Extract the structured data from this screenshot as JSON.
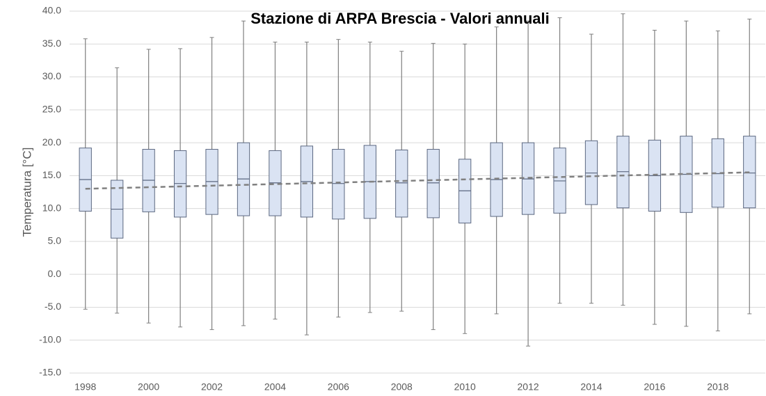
{
  "chart_data": {
    "type": "box",
    "title": "Stazione di ARPA Brescia - Valori annuali",
    "y_label": "Temperatura [°C]",
    "categories": [
      "1998",
      null,
      "2000",
      null,
      "2002",
      null,
      "2004",
      null,
      "2006",
      null,
      "2008",
      null,
      "2010",
      null,
      "2012",
      null,
      "2014",
      null,
      "2016",
      null,
      "2018",
      null
    ],
    "boxes": [
      {
        "high": 35.8,
        "q3": 19.2,
        "median": 14.4,
        "q1": 9.6,
        "low": -5.3
      },
      {
        "high": 31.4,
        "q3": 14.3,
        "median": 9.9,
        "q1": 5.5,
        "low": -5.9
      },
      {
        "high": 34.2,
        "q3": 19.0,
        "median": 14.3,
        "q1": 9.5,
        "low": -7.4
      },
      {
        "high": 34.3,
        "q3": 18.8,
        "median": 13.8,
        "q1": 8.7,
        "low": -8.0
      },
      {
        "high": 36.0,
        "q3": 19.0,
        "median": 14.1,
        "q1": 9.1,
        "low": -8.4
      },
      {
        "high": 38.5,
        "q3": 20.0,
        "median": 14.5,
        "q1": 8.9,
        "low": -7.8
      },
      {
        "high": 35.3,
        "q3": 18.8,
        "median": 13.9,
        "q1": 8.9,
        "low": -6.8
      },
      {
        "high": 35.3,
        "q3": 19.5,
        "median": 14.1,
        "q1": 8.7,
        "low": -9.2
      },
      {
        "high": 35.7,
        "q3": 19.0,
        "median": 13.8,
        "q1": 8.4,
        "low": -6.5
      },
      {
        "high": 35.3,
        "q3": 19.6,
        "median": 14.1,
        "q1": 8.5,
        "low": -5.8
      },
      {
        "high": 33.9,
        "q3": 18.9,
        "median": 13.9,
        "q1": 8.7,
        "low": -5.6
      },
      {
        "high": 35.1,
        "q3": 19.0,
        "median": 13.9,
        "q1": 8.6,
        "low": -8.4
      },
      {
        "high": 35.0,
        "q3": 17.5,
        "median": 12.7,
        "q1": 7.8,
        "low": -9.0
      },
      {
        "high": 37.6,
        "q3": 20.0,
        "median": 14.4,
        "q1": 8.8,
        "low": -6.0
      },
      {
        "high": 38.5,
        "q3": 20.0,
        "median": 14.5,
        "q1": 9.1,
        "low": -10.9
      },
      {
        "high": 39.0,
        "q3": 19.2,
        "median": 14.2,
        "q1": 9.3,
        "low": -4.4
      },
      {
        "high": 36.5,
        "q3": 20.3,
        "median": 15.4,
        "q1": 10.6,
        "low": -4.4
      },
      {
        "high": 39.6,
        "q3": 21.0,
        "median": 15.6,
        "q1": 10.1,
        "low": -4.7
      },
      {
        "high": 37.1,
        "q3": 20.4,
        "median": 15.0,
        "q1": 9.6,
        "low": -7.6
      },
      {
        "high": 38.5,
        "q3": 21.0,
        "median": 15.2,
        "q1": 9.4,
        "low": -7.9
      },
      {
        "high": 37.0,
        "q3": 20.6,
        "median": 15.3,
        "q1": 10.2,
        "low": -8.6
      },
      {
        "high": 38.8,
        "q3": 21.0,
        "median": 15.4,
        "q1": 10.1,
        "low": -6.0
      }
    ],
    "trendline": {
      "start": 13.0,
      "end": 15.5
    },
    "ylim": [
      -15,
      40
    ],
    "yticks": [
      {
        "value": -15,
        "label": "-15.0"
      },
      {
        "value": -10,
        "label": "-10.0"
      },
      {
        "value": -5,
        "label": "-5.0"
      },
      {
        "value": 0,
        "label": "0.0"
      },
      {
        "value": 5,
        "label": "5.0"
      },
      {
        "value": 10,
        "label": "10.0"
      },
      {
        "value": 15,
        "label": "15.0"
      },
      {
        "value": 20,
        "label": "20.0"
      },
      {
        "value": 25,
        "label": "25.0"
      },
      {
        "value": 30,
        "label": "30.0"
      },
      {
        "value": 35,
        "label": "35.0"
      },
      {
        "value": 40,
        "label": "40.0"
      }
    ],
    "grid": true,
    "box_color": "#dae3f3",
    "edge_color": "#5b6780",
    "whisker_color": "#7f7f7f",
    "trend_color": "#808080"
  }
}
